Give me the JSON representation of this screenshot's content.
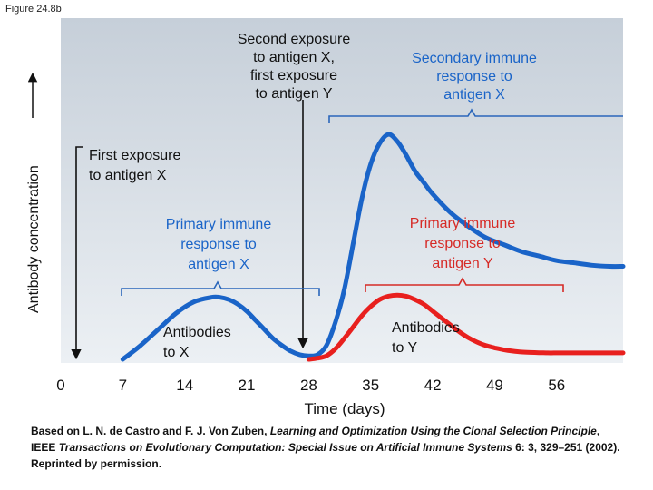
{
  "figure_label": "Figure 24.8b",
  "colors": {
    "plot_top": "#c6cfd9",
    "plot_bottom": "#ecf0f4",
    "antibody_x": "#1a64c8",
    "antibody_y": "#e8201e",
    "brace_blue": "#2a66bb",
    "brace_red": "#d62a26",
    "secondary_text": "#1a64c8",
    "primary_x_text": "#1a64c8",
    "primary_y_text": "#d62a26"
  },
  "chart_data": {
    "type": "line",
    "title": "",
    "xlabel": "Time (days)",
    "ylabel": "Antibody concentration",
    "x_ticks": [
      0,
      7,
      14,
      21,
      28,
      35,
      42,
      49,
      56
    ],
    "xlim": [
      0,
      63.5
    ],
    "ylim": [
      0,
      10
    ],
    "series": [
      {
        "name": "Antibodies to X",
        "color": "#1a64c8",
        "x": [
          7,
          9,
          11,
          13,
          15,
          17,
          18,
          19,
          20,
          21,
          22,
          23,
          24,
          25,
          26,
          27,
          28,
          29,
          30,
          31,
          32,
          33,
          34,
          35,
          36,
          37,
          38,
          39,
          40,
          41,
          42,
          44,
          46,
          48,
          50,
          52,
          54,
          56,
          58,
          60,
          62,
          63.5
        ],
        "y": [
          0.0,
          0.6,
          1.3,
          2.0,
          2.5,
          2.7,
          2.7,
          2.6,
          2.4,
          2.1,
          1.7,
          1.3,
          0.9,
          0.6,
          0.35,
          0.2,
          0.15,
          0.2,
          0.6,
          1.6,
          3.0,
          5.0,
          7.0,
          8.5,
          9.4,
          9.8,
          9.5,
          8.9,
          8.2,
          7.7,
          7.2,
          6.4,
          5.8,
          5.3,
          5.0,
          4.7,
          4.5,
          4.3,
          4.2,
          4.1,
          4.05,
          4.05
        ]
      },
      {
        "name": "Antibodies to Y",
        "color": "#e8201e",
        "x": [
          28,
          29,
          30,
          31,
          32,
          33,
          34,
          35,
          36,
          37,
          38,
          39,
          40,
          41,
          42,
          43,
          44,
          45,
          46,
          47,
          48,
          49,
          50,
          51,
          52,
          53,
          54,
          55,
          56,
          57,
          58,
          60,
          62,
          63.5
        ],
        "y": [
          0.0,
          0.05,
          0.15,
          0.45,
          0.9,
          1.4,
          1.9,
          2.3,
          2.6,
          2.75,
          2.8,
          2.75,
          2.6,
          2.4,
          2.1,
          1.8,
          1.5,
          1.2,
          0.95,
          0.75,
          0.6,
          0.5,
          0.42,
          0.36,
          0.32,
          0.3,
          0.29,
          0.28,
          0.28,
          0.28,
          0.28,
          0.28,
          0.28,
          0.28
        ]
      }
    ],
    "events": [
      {
        "label": "First exposure to antigen X",
        "x": 0
      },
      {
        "label": "Second exposure to antigen X, first exposure to antigen Y",
        "x": 28
      }
    ],
    "annotations": [
      {
        "label": "Primary immune response to antigen X",
        "x_range": [
          7,
          28
        ]
      },
      {
        "label": "Secondary immune response to antigen X",
        "x_range": [
          28,
          63.5
        ]
      },
      {
        "label": "Primary immune response to antigen Y",
        "x_range": [
          35,
          56
        ]
      },
      {
        "label": "Antibodies to X"
      },
      {
        "label": "Antibodies to Y"
      }
    ]
  },
  "labels": {
    "second_exposure": [
      "Second exposure",
      "to antigen X,",
      "first exposure",
      "to antigen Y"
    ],
    "secondary_response": [
      "Secondary immune",
      "response to",
      "antigen X"
    ],
    "first_exposure": [
      "First exposure",
      "to antigen X"
    ],
    "primary_x": [
      "Primary immune",
      "response to",
      "antigen X"
    ],
    "primary_y": [
      "Primary immune",
      "response to",
      "antigen Y"
    ],
    "antibodies_x": [
      "Antibodies",
      "to X"
    ],
    "antibodies_y": [
      "Antibodies",
      "to Y"
    ]
  },
  "caption": {
    "prefix": "Based on L. N. de Castro and F. J. Von Zuben, ",
    "title": "Learning and Optimization Using the Clonal Selection Principle",
    "middle": ", IEEE ",
    "journal": "Transactions on Evolutionary Computation: Special Issue on Artificial Immune Systems",
    "suffix": " 6: 3, 329–251 (2002). Reprinted by permission."
  }
}
